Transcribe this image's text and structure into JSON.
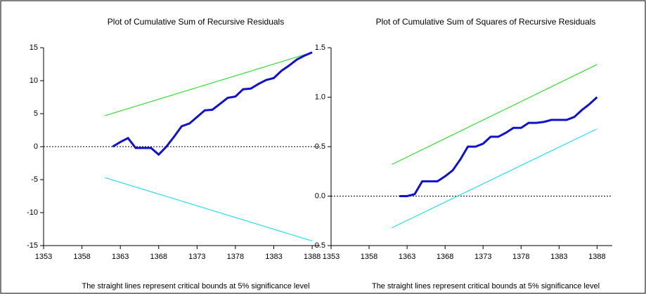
{
  "chart_data": [
    {
      "type": "line",
      "title": "Plot of Cumulative Sum of Recursive Residuals",
      "caption": "The straight lines represent critical bounds at 5% significance level",
      "xlim": [
        1353,
        1389
      ],
      "xticks": [
        1353,
        1358,
        1363,
        1368,
        1373,
        1378,
        1383,
        1388
      ],
      "ylim": [
        -15,
        15
      ],
      "yticks": [
        15,
        10,
        5,
        0,
        -5,
        -10,
        -15
      ],
      "zero_line": true,
      "series": [
        {
          "color": "#33dd33",
          "x": [
            1361,
            1388
          ],
          "values": [
            4.7,
            14.3
          ]
        },
        {
          "color": "#22e0f0",
          "x": [
            1361,
            1388
          ],
          "values": [
            -4.7,
            -14.3
          ]
        },
        {
          "color": "#1010d0",
          "x": [
            1362,
            1363,
            1364,
            1365,
            1366,
            1367,
            1368,
            1369,
            1370,
            1371,
            1372,
            1373,
            1374,
            1375,
            1376,
            1377,
            1378,
            1379,
            1380,
            1381,
            1382,
            1383,
            1384,
            1385,
            1386,
            1387,
            1388
          ],
          "values": [
            0,
            0.7,
            1.3,
            -0.2,
            -0.2,
            -0.2,
            -1.2,
            0,
            1.5,
            3.1,
            3.5,
            4.5,
            5.5,
            5.6,
            6.5,
            7.4,
            7.6,
            8.7,
            8.8,
            9.5,
            10.1,
            10.4,
            11.5,
            12.3,
            13.2,
            13.8,
            14.3
          ]
        }
      ]
    },
    {
      "type": "line",
      "title": "Plot of Cumulative Sum of Squares of Recursive Residuals",
      "caption": "The straight lines represent critical bounds at 5% significance level",
      "xlim": [
        1353,
        1390
      ],
      "xticks": [
        1353,
        1358,
        1363,
        1368,
        1373,
        1378,
        1383,
        1388
      ],
      "ylim": [
        -0.5,
        1.5
      ],
      "yticks": [
        1.5,
        {
          "value": 1.0,
          "label": "1.0"
        },
        0.5,
        {
          "value": 0.0,
          "label": "0.0"
        },
        -0.5
      ],
      "zero_line": true,
      "series": [
        {
          "color": "#33dd33",
          "x": [
            1361,
            1388
          ],
          "values": [
            0.32,
            1.33
          ]
        },
        {
          "color": "#22e0f0",
          "x": [
            1361,
            1388
          ],
          "values": [
            -0.32,
            0.68
          ]
        },
        {
          "color": "#1010d0",
          "x": [
            1362,
            1363,
            1364,
            1365,
            1366,
            1367,
            1368,
            1369,
            1370,
            1371,
            1372,
            1373,
            1374,
            1375,
            1376,
            1377,
            1378,
            1379,
            1380,
            1381,
            1382,
            1383,
            1384,
            1385,
            1386,
            1387,
            1388
          ],
          "values": [
            0,
            0,
            0.02,
            0.15,
            0.15,
            0.15,
            0.2,
            0.26,
            0.37,
            0.5,
            0.5,
            0.53,
            0.6,
            0.6,
            0.64,
            0.69,
            0.69,
            0.74,
            0.74,
            0.75,
            0.77,
            0.77,
            0.77,
            0.8,
            0.87,
            0.93,
            1.0
          ]
        }
      ]
    }
  ]
}
